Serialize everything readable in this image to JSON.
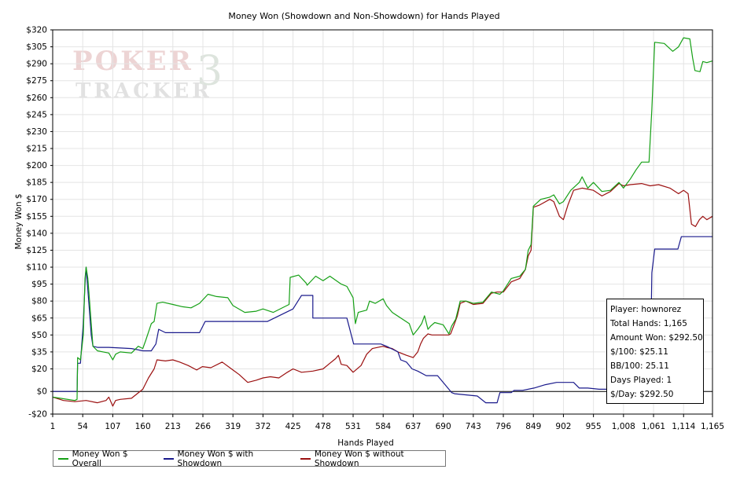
{
  "watermark": {
    "line1": "POKER",
    "line2": "TRACKER",
    "mark": "3"
  },
  "chart_data": {
    "type": "line",
    "title": "Money Won (Showdown and Non-Showdown) for Hands Played",
    "xlabel": "Hands Played",
    "ylabel": "Money Won $",
    "xlim": [
      1,
      1165
    ],
    "ylim": [
      -20,
      320
    ],
    "grid": true,
    "legend_position": "bottom",
    "x_ticks": [
      1,
      54,
      107,
      160,
      213,
      266,
      319,
      372,
      425,
      478,
      531,
      584,
      637,
      690,
      743,
      796,
      849,
      902,
      955,
      1008,
      1061,
      1114,
      1165
    ],
    "x_tick_labels": [
      "1",
      "54",
      "107",
      "160",
      "213",
      "266",
      "319",
      "372",
      "425",
      "478",
      "531",
      "584",
      "637",
      "690",
      "743",
      "796",
      "849",
      "902",
      "955",
      "1,008",
      "1,061",
      "1,114",
      "1,165"
    ],
    "y_ticks": [
      -20,
      0,
      20,
      35,
      50,
      65,
      80,
      95,
      110,
      125,
      140,
      155,
      170,
      185,
      200,
      215,
      230,
      245,
      260,
      275,
      290,
      305,
      320
    ],
    "y_tick_labels": [
      "-$20",
      "$0",
      "$20",
      "$35",
      "$50",
      "$65",
      "$80",
      "$95",
      "$110",
      "$125",
      "$140",
      "$155",
      "$170",
      "$185",
      "$200",
      "$215",
      "$230",
      "$245",
      "$260",
      "$275",
      "$290",
      "$305",
      "$320"
    ],
    "series": [
      {
        "name": "Money Won $ Overall",
        "color": "#16a016",
        "points": [
          [
            1,
            -5
          ],
          [
            40,
            -8
          ],
          [
            44,
            -7
          ],
          [
            45,
            30
          ],
          [
            50,
            28
          ],
          [
            55,
            50
          ],
          [
            58,
            100
          ],
          [
            60,
            110
          ],
          [
            63,
            100
          ],
          [
            66,
            80
          ],
          [
            69,
            60
          ],
          [
            72,
            40
          ],
          [
            80,
            36
          ],
          [
            100,
            34
          ],
          [
            107,
            28
          ],
          [
            112,
            33
          ],
          [
            120,
            35
          ],
          [
            140,
            34
          ],
          [
            152,
            40
          ],
          [
            160,
            38
          ],
          [
            165,
            45
          ],
          [
            175,
            60
          ],
          [
            180,
            62
          ],
          [
            185,
            78
          ],
          [
            195,
            79
          ],
          [
            213,
            77
          ],
          [
            230,
            75
          ],
          [
            245,
            74
          ],
          [
            260,
            78
          ],
          [
            275,
            86
          ],
          [
            290,
            84
          ],
          [
            310,
            83
          ],
          [
            319,
            76
          ],
          [
            340,
            70
          ],
          [
            360,
            71
          ],
          [
            372,
            73
          ],
          [
            390,
            70
          ],
          [
            410,
            75
          ],
          [
            418,
            77
          ],
          [
            420,
            101
          ],
          [
            435,
            103
          ],
          [
            448,
            96
          ],
          [
            450,
            94
          ],
          [
            465,
            102
          ],
          [
            478,
            98
          ],
          [
            490,
            102
          ],
          [
            510,
            95
          ],
          [
            520,
            93
          ],
          [
            531,
            83
          ],
          [
            535,
            60
          ],
          [
            540,
            70
          ],
          [
            555,
            72
          ],
          [
            560,
            80
          ],
          [
            570,
            78
          ],
          [
            584,
            82
          ],
          [
            590,
            76
          ],
          [
            600,
            70
          ],
          [
            615,
            65
          ],
          [
            630,
            60
          ],
          [
            637,
            50
          ],
          [
            645,
            55
          ],
          [
            652,
            60
          ],
          [
            657,
            67
          ],
          [
            663,
            55
          ],
          [
            668,
            58
          ],
          [
            675,
            61
          ],
          [
            690,
            59
          ],
          [
            700,
            51
          ],
          [
            705,
            58
          ],
          [
            712,
            64
          ],
          [
            720,
            80
          ],
          [
            730,
            80
          ],
          [
            743,
            78
          ],
          [
            760,
            79
          ],
          [
            775,
            88
          ],
          [
            790,
            86
          ],
          [
            796,
            89
          ],
          [
            810,
            100
          ],
          [
            825,
            102
          ],
          [
            835,
            108
          ],
          [
            840,
            125
          ],
          [
            845,
            130
          ],
          [
            849,
            164
          ],
          [
            862,
            170
          ],
          [
            878,
            172
          ],
          [
            885,
            174
          ],
          [
            895,
            166
          ],
          [
            902,
            168
          ],
          [
            915,
            178
          ],
          [
            930,
            185
          ],
          [
            935,
            190
          ],
          [
            945,
            180
          ],
          [
            955,
            185
          ],
          [
            970,
            177
          ],
          [
            985,
            178
          ],
          [
            1000,
            185
          ],
          [
            1008,
            180
          ],
          [
            1020,
            188
          ],
          [
            1030,
            196
          ],
          [
            1040,
            203
          ],
          [
            1053,
            203
          ],
          [
            1058,
            250
          ],
          [
            1063,
            309
          ],
          [
            1080,
            308
          ],
          [
            1095,
            301
          ],
          [
            1105,
            305
          ],
          [
            1114,
            313
          ],
          [
            1125,
            312
          ],
          [
            1130,
            295
          ],
          [
            1134,
            284
          ],
          [
            1143,
            283
          ],
          [
            1148,
            292
          ],
          [
            1155,
            291
          ],
          [
            1165,
            292.5
          ]
        ]
      },
      {
        "name": "Money Won $ with Showdown",
        "color": "#1a1a8c",
        "points": [
          [
            1,
            0
          ],
          [
            44,
            0
          ],
          [
            45,
            25
          ],
          [
            50,
            25
          ],
          [
            52,
            40
          ],
          [
            55,
            60
          ],
          [
            58,
            95
          ],
          [
            60,
            110
          ],
          [
            63,
            90
          ],
          [
            66,
            70
          ],
          [
            69,
            50
          ],
          [
            72,
            40
          ],
          [
            80,
            39
          ],
          [
            100,
            39
          ],
          [
            140,
            38
          ],
          [
            150,
            37
          ],
          [
            160,
            36
          ],
          [
            175,
            36
          ],
          [
            183,
            42
          ],
          [
            188,
            55
          ],
          [
            200,
            52
          ],
          [
            260,
            52
          ],
          [
            270,
            62
          ],
          [
            330,
            62
          ],
          [
            380,
            62
          ],
          [
            425,
            73
          ],
          [
            440,
            85
          ],
          [
            460,
            85
          ],
          [
            460,
            65
          ],
          [
            520,
            65
          ],
          [
            532,
            42
          ],
          [
            580,
            42
          ],
          [
            590,
            40
          ],
          [
            610,
            35
          ],
          [
            615,
            28
          ],
          [
            625,
            26
          ],
          [
            635,
            20
          ],
          [
            645,
            18
          ],
          [
            660,
            14
          ],
          [
            680,
            14
          ],
          [
            690,
            8
          ],
          [
            705,
            -1
          ],
          [
            710,
            -2
          ],
          [
            750,
            -4
          ],
          [
            765,
            -10
          ],
          [
            785,
            -10
          ],
          [
            790,
            -1
          ],
          [
            810,
            -1
          ],
          [
            815,
            1
          ],
          [
            830,
            1
          ],
          [
            850,
            3
          ],
          [
            870,
            6
          ],
          [
            890,
            8
          ],
          [
            920,
            8
          ],
          [
            930,
            3
          ],
          [
            945,
            3
          ],
          [
            965,
            2
          ],
          [
            990,
            2
          ],
          [
            1000,
            6
          ],
          [
            1020,
            6
          ],
          [
            1030,
            7
          ],
          [
            1055,
            7
          ],
          [
            1058,
            105
          ],
          [
            1063,
            126
          ],
          [
            1080,
            126
          ],
          [
            1104,
            126
          ],
          [
            1110,
            137
          ],
          [
            1140,
            137
          ],
          [
            1165,
            137
          ]
        ]
      },
      {
        "name": "Money Won $ without Showdown",
        "color": "#9b1010",
        "points": [
          [
            1,
            -5
          ],
          [
            20,
            -8
          ],
          [
            40,
            -9
          ],
          [
            60,
            -8
          ],
          [
            80,
            -10
          ],
          [
            95,
            -8
          ],
          [
            100,
            -5
          ],
          [
            107,
            -13
          ],
          [
            112,
            -8
          ],
          [
            120,
            -7
          ],
          [
            140,
            -6
          ],
          [
            150,
            -2
          ],
          [
            160,
            2
          ],
          [
            170,
            12
          ],
          [
            180,
            20
          ],
          [
            185,
            28
          ],
          [
            200,
            27
          ],
          [
            213,
            28
          ],
          [
            225,
            26
          ],
          [
            240,
            23
          ],
          [
            255,
            19
          ],
          [
            265,
            22
          ],
          [
            280,
            21
          ],
          [
            300,
            26
          ],
          [
            319,
            19
          ],
          [
            330,
            15
          ],
          [
            345,
            8
          ],
          [
            360,
            10
          ],
          [
            372,
            12
          ],
          [
            385,
            13
          ],
          [
            400,
            12
          ],
          [
            415,
            17
          ],
          [
            425,
            20
          ],
          [
            440,
            17
          ],
          [
            460,
            18
          ],
          [
            478,
            20
          ],
          [
            490,
            25
          ],
          [
            500,
            29
          ],
          [
            505,
            32
          ],
          [
            510,
            24
          ],
          [
            520,
            23
          ],
          [
            531,
            17
          ],
          [
            545,
            23
          ],
          [
            555,
            33
          ],
          [
            565,
            38
          ],
          [
            584,
            40
          ],
          [
            590,
            39
          ],
          [
            600,
            38
          ],
          [
            610,
            35
          ],
          [
            625,
            32
          ],
          [
            637,
            30
          ],
          [
            645,
            35
          ],
          [
            650,
            42
          ],
          [
            655,
            47
          ],
          [
            663,
            51
          ],
          [
            670,
            50
          ],
          [
            690,
            50
          ],
          [
            700,
            50
          ],
          [
            703,
            51
          ],
          [
            710,
            60
          ],
          [
            715,
            67
          ],
          [
            720,
            78
          ],
          [
            730,
            80
          ],
          [
            743,
            77
          ],
          [
            760,
            78
          ],
          [
            775,
            87
          ],
          [
            785,
            88
          ],
          [
            796,
            88
          ],
          [
            810,
            97
          ],
          [
            825,
            100
          ],
          [
            835,
            108
          ],
          [
            840,
            120
          ],
          [
            845,
            125
          ],
          [
            849,
            163
          ],
          [
            860,
            165
          ],
          [
            878,
            170
          ],
          [
            885,
            168
          ],
          [
            895,
            155
          ],
          [
            902,
            152
          ],
          [
            910,
            165
          ],
          [
            920,
            178
          ],
          [
            935,
            180
          ],
          [
            955,
            178
          ],
          [
            970,
            173
          ],
          [
            985,
            177
          ],
          [
            1000,
            184
          ],
          [
            1008,
            182
          ],
          [
            1020,
            183
          ],
          [
            1040,
            184
          ],
          [
            1055,
            182
          ],
          [
            1070,
            183
          ],
          [
            1090,
            180
          ],
          [
            1105,
            175
          ],
          [
            1114,
            178
          ],
          [
            1122,
            175
          ],
          [
            1128,
            148
          ],
          [
            1135,
            146
          ],
          [
            1142,
            152
          ],
          [
            1148,
            155
          ],
          [
            1155,
            152
          ],
          [
            1165,
            155
          ]
        ]
      }
    ]
  },
  "stats": {
    "player": "Player: hownorez",
    "total_hands": "Total Hands: 1,165",
    "amount_won": "Amount Won: $292.50",
    "per_100": "$/100: $25.11",
    "bb_per_100": "BB/100: 25.11",
    "days_played": "Days Played: 1",
    "per_day": "$/Day: $292.50"
  }
}
